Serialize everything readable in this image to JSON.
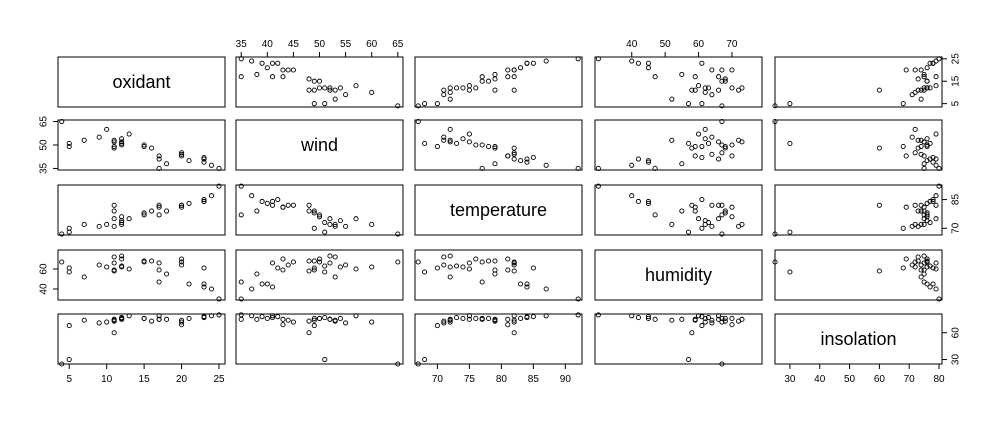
{
  "chart_data": {
    "type": "scatter",
    "variables": [
      "oxidant",
      "wind",
      "temperature",
      "humidity",
      "insolation"
    ],
    "axis_ticks": {
      "oxidant": [
        5,
        10,
        15,
        20,
        25
      ],
      "wind": [
        35,
        40,
        45,
        50,
        55,
        60,
        65
      ],
      "temperature": [
        70,
        75,
        80,
        85,
        90
      ],
      "humidity": [
        40,
        50,
        60,
        70
      ],
      "insolation": [
        30,
        40,
        50,
        60,
        70,
        80
      ]
    },
    "axis_tick_labels": {
      "oxidant": [
        "5",
        "10",
        "15",
        "20",
        "25"
      ],
      "wind": [
        "35",
        "40",
        "45",
        "50",
        "55",
        "60",
        "65"
      ],
      "temperature": [
        "70",
        "75",
        "80",
        "85",
        "90"
      ],
      "humidity": [
        "40",
        "50",
        "60",
        "70"
      ],
      "insolation": [
        "30",
        "40",
        "50",
        "60",
        "70",
        "80"
      ]
    },
    "side_axis_ticks": {
      "oxidant": [
        5,
        15,
        25
      ],
      "wind": [
        35,
        50,
        65
      ],
      "temperature": [
        70,
        85
      ],
      "humidity": [
        40,
        60
      ],
      "insolation": [
        30,
        60
      ]
    },
    "side_axis_tick_labels": {
      "oxidant": [
        "5",
        "15",
        "25"
      ],
      "wind": [
        "35",
        "50",
        "65"
      ],
      "temperature": [
        "70",
        "85"
      ],
      "humidity": [
        "40",
        "60"
      ],
      "insolation": [
        "30",
        "60"
      ]
    },
    "ranges": {
      "oxidant": [
        3.5,
        25.8
      ],
      "wind": [
        34,
        66
      ],
      "temperature": [
        66.5,
        92.6
      ],
      "humidity": [
        29,
        79
      ],
      "insolation": [
        25,
        81
      ]
    },
    "observations": [
      {
        "oxidant": 25,
        "wind": 35,
        "temperature": 92,
        "humidity": 30,
        "insolation": 80
      },
      {
        "oxidant": 24,
        "wind": 37,
        "temperature": 87,
        "humidity": 40,
        "insolation": 79
      },
      {
        "oxidant": 23,
        "wind": 39,
        "temperature": 84,
        "humidity": 45,
        "insolation": 78
      },
      {
        "oxidant": 23,
        "wind": 41,
        "temperature": 84,
        "humidity": 42,
        "insolation": 77
      },
      {
        "oxidant": 23,
        "wind": 42,
        "temperature": 85,
        "humidity": 61,
        "insolation": 78
      },
      {
        "oxidant": 21,
        "wind": 40,
        "temperature": 83,
        "humidity": 45,
        "insolation": 76
      },
      {
        "oxidant": 20,
        "wind": 44,
        "temperature": 82,
        "humidity": 64,
        "insolation": 74
      },
      {
        "oxidant": 20,
        "wind": 45,
        "temperature": 82,
        "humidity": 67,
        "insolation": 72
      },
      {
        "oxidant": 20,
        "wind": 43,
        "temperature": 81,
        "humidity": 70,
        "insolation": 69
      },
      {
        "oxidant": 18,
        "wind": 38,
        "temperature": 79,
        "humidity": 55,
        "insolation": 75
      },
      {
        "oxidant": 17,
        "wind": 35,
        "temperature": 77,
        "humidity": 47,
        "insolation": 75
      },
      {
        "oxidant": 17,
        "wind": 41,
        "temperature": 82,
        "humidity": 66,
        "insolation": 79
      },
      {
        "oxidant": 17,
        "wind": 43,
        "temperature": 81,
        "humidity": 59,
        "insolation": 75
      },
      {
        "oxidant": 16,
        "wind": 48,
        "temperature": 79,
        "humidity": 68,
        "insolation": 73
      },
      {
        "oxidant": 15,
        "wind": 49,
        "temperature": 78,
        "humidity": 68,
        "insolation": 76
      },
      {
        "oxidant": 15,
        "wind": 50,
        "temperature": 77,
        "humidity": 67,
        "insolation": 76
      },
      {
        "oxidant": 13,
        "wind": 57,
        "temperature": 75,
        "humidity": 60,
        "insolation": 79
      },
      {
        "oxidant": 12,
        "wind": 54,
        "temperature": 74,
        "humidity": 62,
        "insolation": 76
      },
      {
        "oxidant": 12,
        "wind": 51,
        "temperature": 73,
        "humidity": 63,
        "insolation": 77
      },
      {
        "oxidant": 12,
        "wind": 50,
        "temperature": 76,
        "humidity": 70,
        "insolation": 76
      },
      {
        "oxidant": 12,
        "wind": 52,
        "temperature": 72,
        "humidity": 73,
        "insolation": 75
      },
      {
        "oxidant": 11,
        "wind": 53,
        "temperature": 71,
        "humidity": 72,
        "insolation": 73
      },
      {
        "oxidant": 11,
        "wind": 52,
        "temperature": 75,
        "humidity": 66,
        "insolation": 75
      },
      {
        "oxidant": 11,
        "wind": 49,
        "temperature": 79,
        "humidity": 59,
        "insolation": 74
      },
      {
        "oxidant": 11,
        "wind": 48,
        "temperature": 82,
        "humidity": 58,
        "insolation": 60
      },
      {
        "oxidant": 10,
        "wind": 60,
        "temperature": 72,
        "humidity": 62,
        "insolation": 72
      },
      {
        "oxidant": 9,
        "wind": 55,
        "temperature": 71,
        "humidity": 64,
        "insolation": 71
      },
      {
        "oxidant": 7,
        "wind": 53,
        "temperature": 72,
        "humidity": 52,
        "insolation": 74
      },
      {
        "oxidant": 5,
        "wind": 49,
        "temperature": 70,
        "humidity": 61,
        "insolation": 68
      },
      {
        "oxidant": 5,
        "wind": 51,
        "temperature": 68,
        "humidity": 57,
        "insolation": 30
      },
      {
        "oxidant": 4,
        "wind": 65,
        "temperature": 67,
        "humidity": 67,
        "insolation": 25
      }
    ]
  }
}
